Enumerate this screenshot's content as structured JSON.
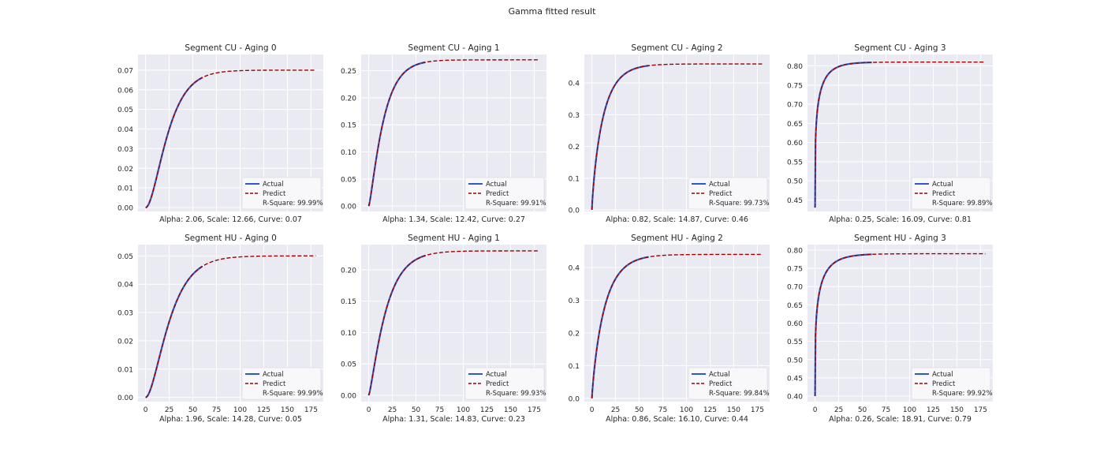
{
  "figure": {
    "title": "Gamma fitted result"
  },
  "legend": {
    "actual_label": "Actual",
    "predict_label": "Predict",
    "actual_color": "#2b5bcb",
    "predict_color": "#a00000",
    "position": "lower-right"
  },
  "style": {
    "plot_bg": "#eaeaf2",
    "grid_color": "#ffffff",
    "grid": true
  },
  "chart_data": [
    {
      "type": "line",
      "title": "Segment CU - Aging 0",
      "x": [
        0,
        180
      ],
      "xlim": [
        0,
        180
      ],
      "actual_range": [
        0,
        60
      ],
      "ylim": [
        -0.002,
        0.078
      ],
      "yticks": [
        0.0,
        0.01,
        0.02,
        0.03,
        0.04,
        0.05,
        0.06,
        0.07
      ],
      "ytick_labels": [
        "0.00",
        "0.01",
        "0.02",
        "0.03",
        "0.04",
        "0.05",
        "0.06",
        "0.07"
      ],
      "xticks": [],
      "xtick_labels": [],
      "alpha": 2.06,
      "scale": 12.66,
      "curve": 0.07,
      "r_square": "R-Square: 99.99%",
      "xlabel": "Alpha: 2.06, Scale: 12.66, Curve: 0.07"
    },
    {
      "type": "line",
      "title": "Segment CU - Aging 1",
      "xlim": [
        0,
        180
      ],
      "actual_range": [
        0,
        60
      ],
      "ylim": [
        -0.01,
        0.28
      ],
      "yticks": [
        0.0,
        0.05,
        0.1,
        0.15,
        0.2,
        0.25
      ],
      "ytick_labels": [
        "0.00",
        "0.05",
        "0.10",
        "0.15",
        "0.20",
        "0.25"
      ],
      "xticks": [],
      "xtick_labels": [],
      "alpha": 1.34,
      "scale": 12.42,
      "curve": 0.27,
      "r_square": "R-Square: 99.91%",
      "xlabel": "Alpha: 1.34, Scale: 12.42, Curve: 0.27"
    },
    {
      "type": "line",
      "title": "Segment CU - Aging 2",
      "xlim": [
        0,
        180
      ],
      "actual_range": [
        0,
        60
      ],
      "ylim": [
        -0.005,
        0.49
      ],
      "yticks": [
        0.0,
        0.1,
        0.2,
        0.3,
        0.4
      ],
      "ytick_labels": [
        "0.0",
        "0.1",
        "0.2",
        "0.3",
        "0.4"
      ],
      "xticks": [],
      "xtick_labels": [],
      "alpha": 0.82,
      "scale": 14.87,
      "curve": 0.46,
      "r_square": "R-Square: 99.73%",
      "xlabel": "Alpha: 0.82, Scale: 14.87, Curve: 0.46"
    },
    {
      "type": "line",
      "title": "Segment CU - Aging 3",
      "xlim": [
        0,
        180
      ],
      "actual_range": [
        0,
        60
      ],
      "ylim": [
        0.42,
        0.83
      ],
      "yticks": [
        0.45,
        0.5,
        0.55,
        0.6,
        0.65,
        0.7,
        0.75,
        0.8
      ],
      "ytick_labels": [
        "0.45",
        "0.50",
        "0.55",
        "0.60",
        "0.65",
        "0.70",
        "0.75",
        "0.80"
      ],
      "xticks": [],
      "xtick_labels": [],
      "alpha": 0.25,
      "scale": 16.09,
      "curve": 0.81,
      "y_start": 0.43,
      "r_square": "R-Square: 99.89%",
      "xlabel": "Alpha: 0.25, Scale: 16.09, Curve: 0.81"
    },
    {
      "type": "line",
      "title": "Segment HU - Aging 0",
      "xlim": [
        0,
        180
      ],
      "actual_range": [
        0,
        60
      ],
      "ylim": [
        -0.0015,
        0.054
      ],
      "yticks": [
        0.0,
        0.01,
        0.02,
        0.03,
        0.04,
        0.05
      ],
      "ytick_labels": [
        "0.00",
        "0.01",
        "0.02",
        "0.03",
        "0.04",
        "0.05"
      ],
      "xticks": [
        0,
        25,
        50,
        75,
        100,
        125,
        150,
        175
      ],
      "xtick_labels": [
        "0",
        "25",
        "50",
        "75",
        "100",
        "125",
        "150",
        "175"
      ],
      "alpha": 1.96,
      "scale": 14.28,
      "curve": 0.05,
      "r_square": "R-Square: 99.99%",
      "xlabel": "Alpha: 1.96, Scale: 14.28, Curve: 0.05"
    },
    {
      "type": "line",
      "title": "Segment HU - Aging 1",
      "xlim": [
        0,
        180
      ],
      "actual_range": [
        0,
        60
      ],
      "ylim": [
        -0.01,
        0.24
      ],
      "yticks": [
        0.0,
        0.05,
        0.1,
        0.15,
        0.2
      ],
      "ytick_labels": [
        "0.00",
        "0.05",
        "0.10",
        "0.15",
        "0.20"
      ],
      "xticks": [
        0,
        25,
        50,
        75,
        100,
        125,
        150,
        175
      ],
      "xtick_labels": [
        "0",
        "25",
        "50",
        "75",
        "100",
        "125",
        "150",
        "175"
      ],
      "alpha": 1.31,
      "scale": 14.83,
      "curve": 0.23,
      "r_square": "R-Square: 99.93%",
      "xlabel": "Alpha: 1.31, Scale: 14.83, Curve: 0.23"
    },
    {
      "type": "line",
      "title": "Segment HU - Aging 2",
      "xlim": [
        0,
        180
      ],
      "actual_range": [
        0,
        60
      ],
      "ylim": [
        -0.01,
        0.47
      ],
      "yticks": [
        0.0,
        0.1,
        0.2,
        0.3,
        0.4
      ],
      "ytick_labels": [
        "0.0",
        "0.1",
        "0.2",
        "0.3",
        "0.4"
      ],
      "xticks": [
        0,
        25,
        50,
        75,
        100,
        125,
        150,
        175
      ],
      "xtick_labels": [
        "0",
        "25",
        "50",
        "75",
        "100",
        "125",
        "150",
        "175"
      ],
      "alpha": 0.86,
      "scale": 16.1,
      "curve": 0.44,
      "r_square": "R-Square: 99.84%",
      "xlabel": "Alpha: 0.86, Scale: 16.10, Curve: 0.44"
    },
    {
      "type": "line",
      "title": "Segment HU - Aging 3",
      "xlim": [
        0,
        180
      ],
      "actual_range": [
        0,
        60
      ],
      "ylim": [
        0.385,
        0.815
      ],
      "yticks": [
        0.4,
        0.45,
        0.5,
        0.55,
        0.6,
        0.65,
        0.7,
        0.75,
        0.8
      ],
      "ytick_labels": [
        "0.40",
        "0.45",
        "0.50",
        "0.55",
        "0.60",
        "0.65",
        "0.70",
        "0.75",
        "0.80"
      ],
      "xticks": [
        0,
        25,
        50,
        75,
        100,
        125,
        150,
        175
      ],
      "xtick_labels": [
        "0",
        "25",
        "50",
        "75",
        "100",
        "125",
        "150",
        "175"
      ],
      "alpha": 0.26,
      "scale": 18.91,
      "curve": 0.79,
      "y_start": 0.4,
      "r_square": "R-Square: 99.92%",
      "xlabel": "Alpha: 0.26, Scale: 18.91, Curve: 0.79"
    }
  ]
}
